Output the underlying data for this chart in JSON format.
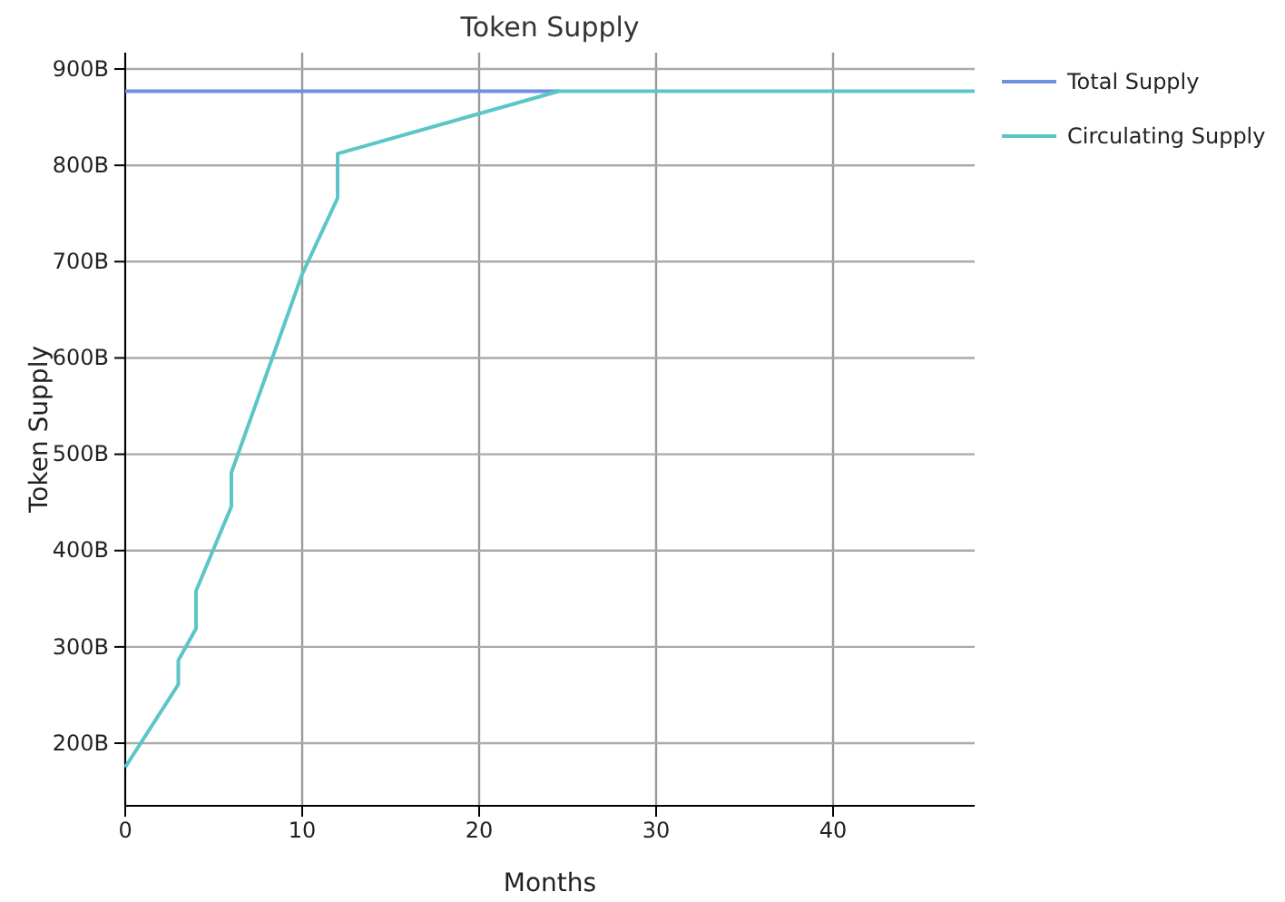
{
  "chart_data": {
    "type": "line",
    "title": "Token Supply",
    "xlabel": "Months",
    "ylabel": "Token Supply",
    "xlim": [
      0,
      48
    ],
    "xticks": [
      0,
      10,
      20,
      30,
      40
    ],
    "ylim": [
      135,
      917
    ],
    "yticks": [
      {
        "value": 200,
        "label": "200B"
      },
      {
        "value": 300,
        "label": "300B"
      },
      {
        "value": 400,
        "label": "400B"
      },
      {
        "value": 500,
        "label": "500B"
      },
      {
        "value": 600,
        "label": "600B"
      },
      {
        "value": 700,
        "label": "700B"
      },
      {
        "value": 800,
        "label": "800B"
      },
      {
        "value": 900,
        "label": "900B"
      }
    ],
    "grid": true,
    "legend": "top right",
    "line_style": "solid",
    "series": [
      {
        "name": "Total Supply",
        "color": "#6f8fe0",
        "x": [
          0,
          24.5
        ],
        "values": [
          877,
          877
        ]
      },
      {
        "name": "Circulating Supply",
        "color": "#5bc5c8",
        "x": [
          0,
          3,
          3,
          4,
          4,
          6,
          6,
          10,
          12,
          12,
          24.5,
          48
        ],
        "values": [
          175,
          261,
          286,
          319,
          358,
          446,
          481,
          687,
          766,
          812,
          877,
          877
        ]
      }
    ]
  }
}
